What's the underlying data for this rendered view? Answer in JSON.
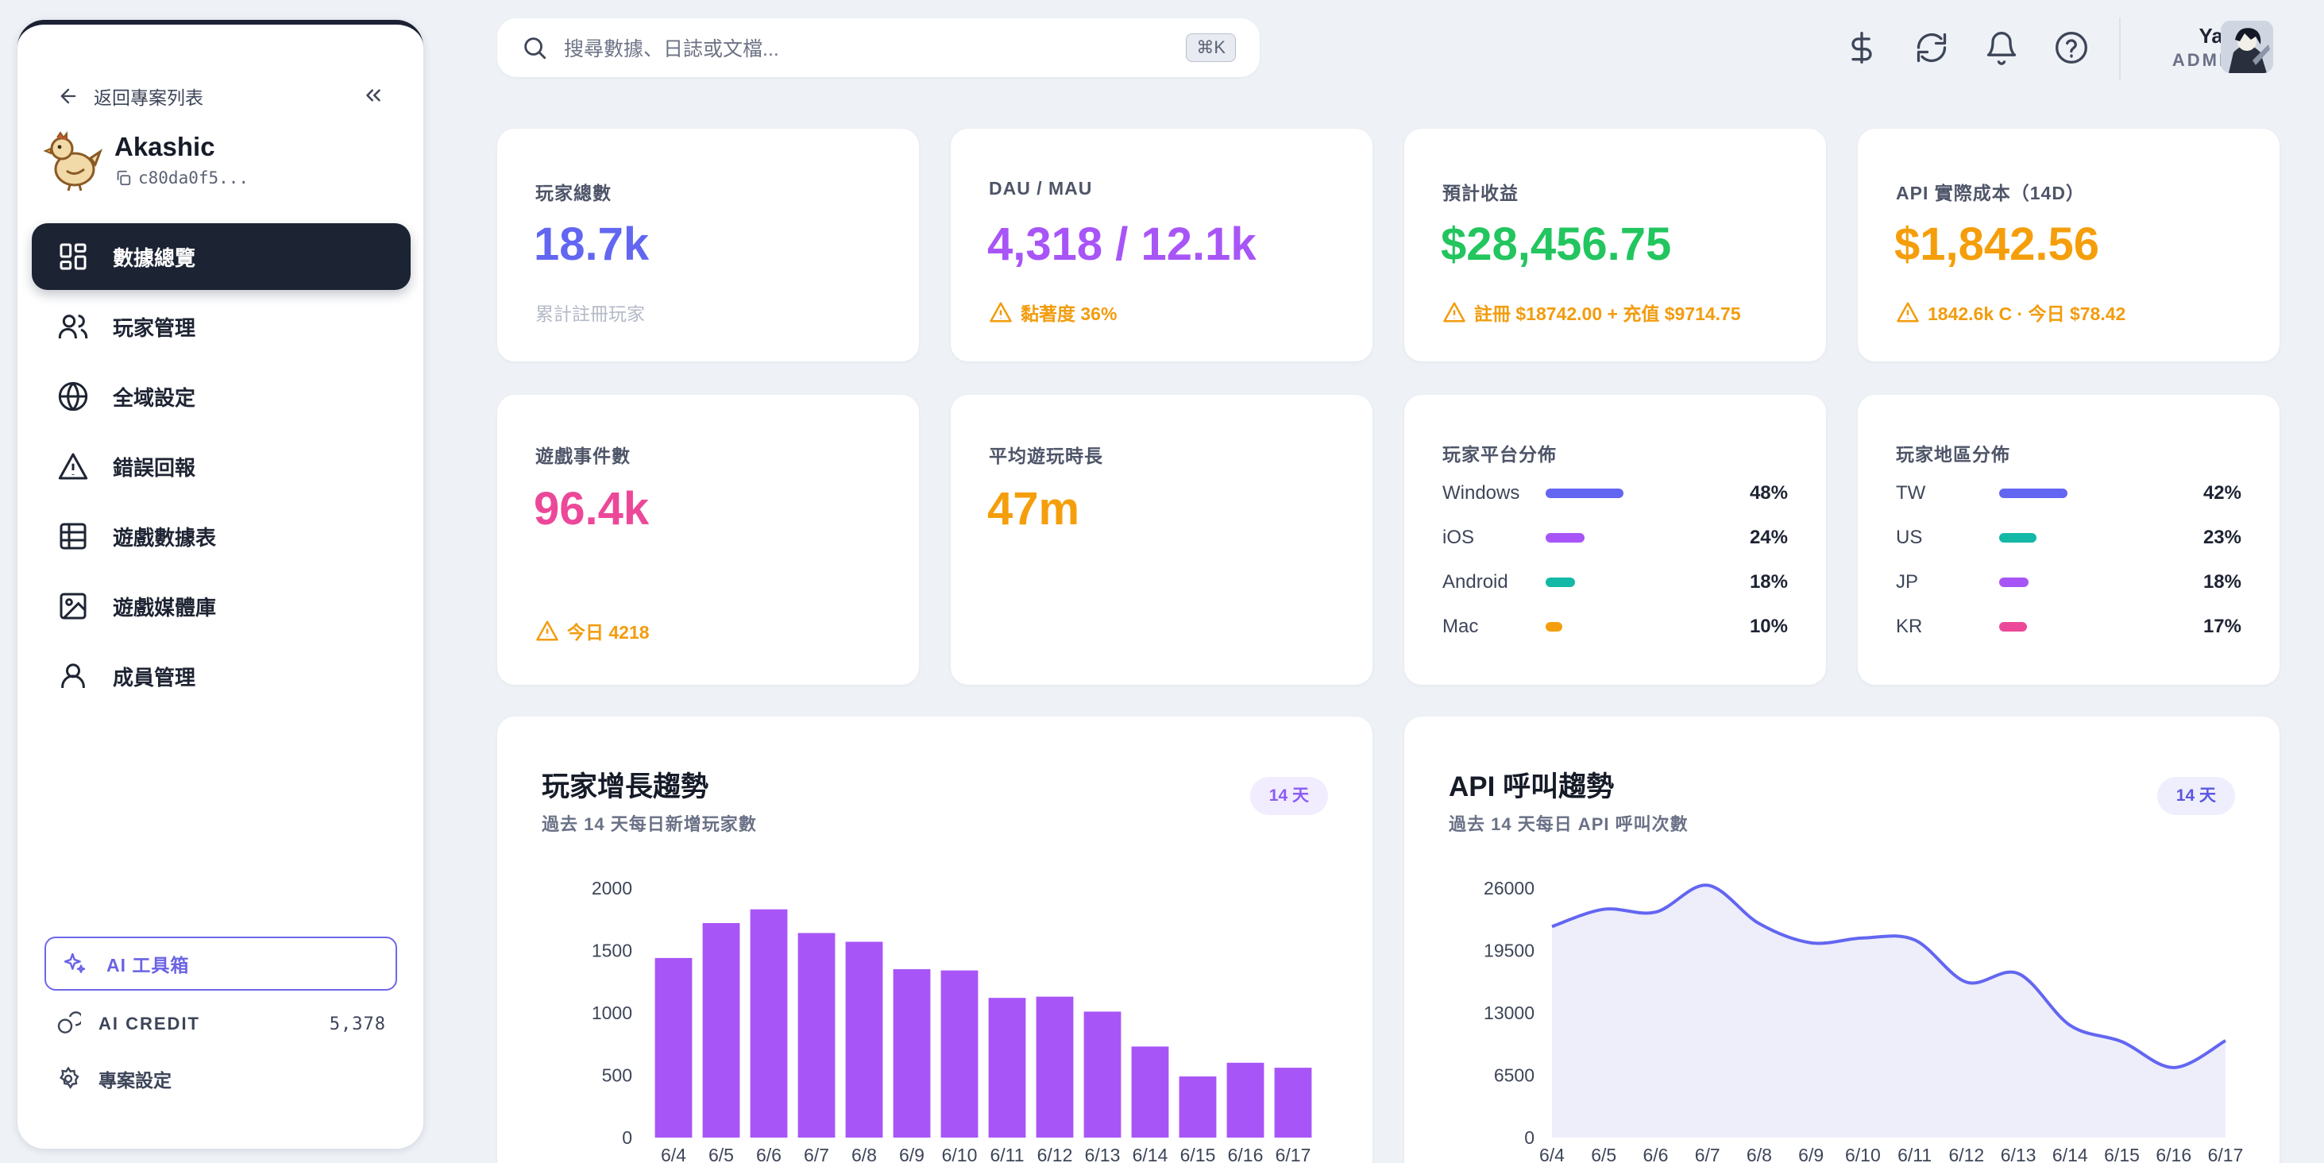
{
  "sidebar": {
    "back_label": "返回專案列表",
    "project_name": "Akashic",
    "project_id": "c80da0f5...",
    "nav": [
      {
        "label": "數據總覽",
        "icon": "dashboard-icon"
      },
      {
        "label": "玩家管理",
        "icon": "users-icon"
      },
      {
        "label": "全域設定",
        "icon": "globe-icon"
      },
      {
        "label": "錯誤回報",
        "icon": "warning-icon"
      },
      {
        "label": "遊戲數據表",
        "icon": "table-icon"
      },
      {
        "label": "遊戲媒體庫",
        "icon": "image-icon"
      },
      {
        "label": "成員管理",
        "icon": "member-icon"
      }
    ],
    "ai_toolbox": "AI 工具箱",
    "ai_credit_label": "AI CREDIT",
    "ai_credit_value": "5,378",
    "project_settings": "專案設定"
  },
  "topbar": {
    "search_placeholder": "搜尋數據、日誌或文檔...",
    "shortcut": "⌘K",
    "user_name": "Yapi",
    "user_role": "ADMIN"
  },
  "stats": {
    "players": {
      "label": "玩家總數",
      "value": "18.7k",
      "sub": "累計註冊玩家",
      "color": "#6366f1"
    },
    "dau": {
      "label": "DAU / MAU",
      "value": "4,318 / 12.1k",
      "sub": "黏著度 36%",
      "color": "#a855f7"
    },
    "revenue": {
      "label": "預計收益",
      "value": "$28,456.75",
      "sub": "註冊 $18742.00 + 充值 $9714.75",
      "color": "#22c55e"
    },
    "api_cost": {
      "label": "API 實際成本（14D）",
      "value": "$1,842.56",
      "sub": "1842.6k C · 今日 $78.42",
      "color": "#f59e0b"
    },
    "events": {
      "label": "遊戲事件數",
      "value": "96.4k",
      "sub": "今日 4218",
      "color": "#ec4899"
    },
    "playtime": {
      "label": "平均遊玩時長",
      "value": "47m",
      "color": "#f59e0b"
    }
  },
  "platform": {
    "label": "玩家平台分佈",
    "rows": [
      {
        "name": "Windows",
        "pct": "48%",
        "value": 48,
        "color": "#6366f1"
      },
      {
        "name": "iOS",
        "pct": "24%",
        "value": 24,
        "color": "#a855f7"
      },
      {
        "name": "Android",
        "pct": "18%",
        "value": 18,
        "color": "#14b8a6"
      },
      {
        "name": "Mac",
        "pct": "10%",
        "value": 10,
        "color": "#f59e0b"
      }
    ]
  },
  "region": {
    "label": "玩家地區分佈",
    "rows": [
      {
        "name": "TW",
        "pct": "42%",
        "value": 42,
        "color": "#6366f1"
      },
      {
        "name": "US",
        "pct": "23%",
        "value": 23,
        "color": "#14b8a6"
      },
      {
        "name": "JP",
        "pct": "18%",
        "value": 18,
        "color": "#a855f7"
      },
      {
        "name": "KR",
        "pct": "17%",
        "value": 17,
        "color": "#ec4899"
      }
    ]
  },
  "charts": {
    "growth": {
      "title": "玩家增長趨勢",
      "subtitle": "過去 14 天每日新增玩家數",
      "pill": "14 天"
    },
    "api": {
      "title": "API 呼叫趨勢",
      "subtitle": "過去 14 天每日 API 呼叫次數",
      "pill": "14 天"
    }
  },
  "chart_data": [
    {
      "type": "bar",
      "title": "玩家增長趨勢",
      "categories": [
        "6/4",
        "6/5",
        "6/6",
        "6/7",
        "6/8",
        "6/9",
        "6/10",
        "6/11",
        "6/12",
        "6/13",
        "6/14",
        "6/15",
        "6/16",
        "6/17"
      ],
      "values": [
        1440,
        1720,
        1830,
        1640,
        1570,
        1350,
        1340,
        1120,
        1130,
        1010,
        730,
        490,
        600,
        560
      ],
      "yticks": [
        0,
        500,
        1000,
        1500,
        2000
      ],
      "ylim": [
        0,
        2000
      ],
      "color": "#a855f7"
    },
    {
      "type": "area",
      "title": "API 呼叫趨勢",
      "categories": [
        "6/4",
        "6/5",
        "6/6",
        "6/7",
        "6/8",
        "6/9",
        "6/10",
        "6/11",
        "6/12",
        "6/13",
        "6/14",
        "6/15",
        "6/16",
        "6/17"
      ],
      "values": [
        22000,
        23800,
        23500,
        26300,
        22300,
        20300,
        20800,
        20600,
        16200,
        17100,
        11700,
        10000,
        7300,
        10100
      ],
      "yticks": [
        0,
        6500,
        13000,
        19500,
        26000
      ],
      "ylim": [
        0,
        26000
      ],
      "color": "#6366f1"
    }
  ]
}
